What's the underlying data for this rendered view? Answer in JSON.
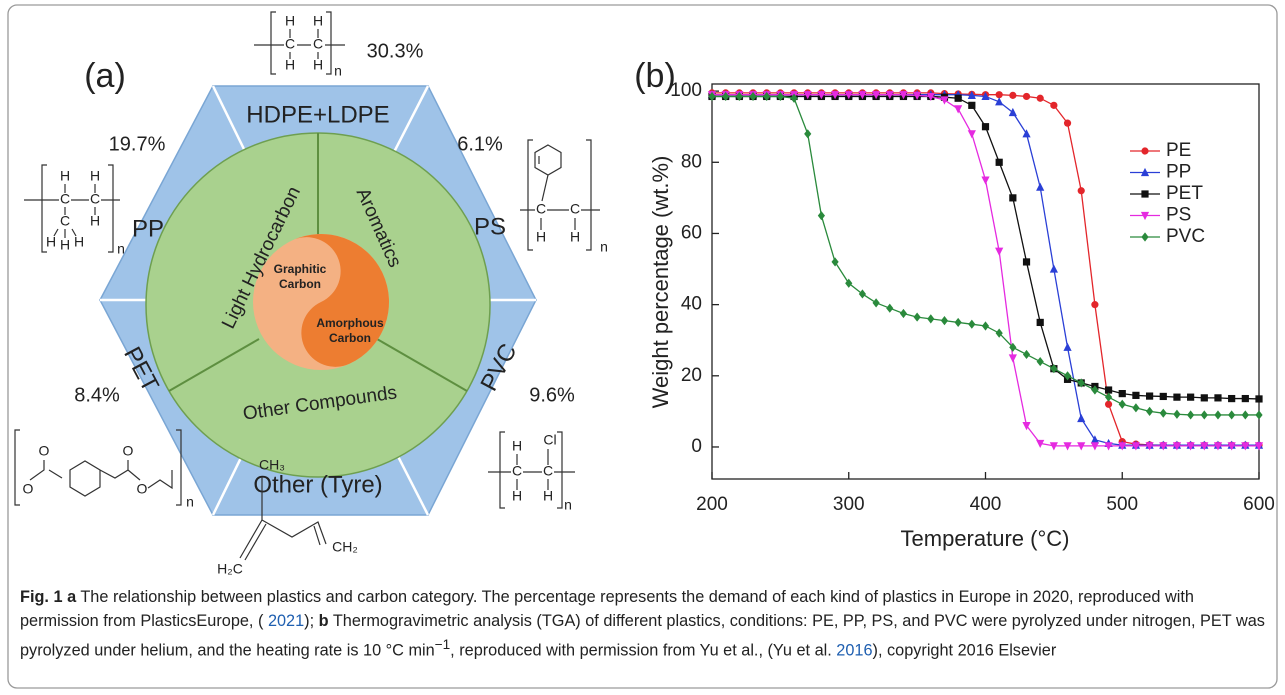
{
  "panel_a": {
    "label": "(a)",
    "segments": [
      {
        "name": "HDPE+LDPE",
        "percent": "30.3%"
      },
      {
        "name": "PS",
        "percent": "6.1%"
      },
      {
        "name": "PVC",
        "percent": "9.6%"
      },
      {
        "name": "Other (Tyre)"
      },
      {
        "name": "PET",
        "percent": "8.4%"
      },
      {
        "name": "PP",
        "percent": "19.7%"
      }
    ],
    "ring": [
      "Light Hydrocarbon",
      "Aromatics",
      "Other Compounds"
    ],
    "core": [
      [
        "Graphitic",
        "Carbon"
      ],
      [
        "Amorphous",
        "Carbon"
      ]
    ],
    "structures": {
      "pe": [
        "H",
        "H",
        "C",
        "C",
        "H",
        "H",
        "n"
      ],
      "pp": [
        "H",
        "H",
        "C",
        "C",
        "C",
        "H",
        "H",
        "H",
        "H",
        "n"
      ],
      "ps": [
        "C",
        "C",
        "H",
        "H",
        "n"
      ],
      "pet": [
        "O",
        "O",
        "O",
        "O",
        "n"
      ],
      "pvc": [
        "H",
        "Cl",
        "C",
        "C",
        "H",
        "H",
        "n"
      ],
      "tyre": [
        "CH₃",
        "H₂C",
        "CH₂"
      ]
    }
  },
  "chart_data": {
    "type": "line",
    "label": "(b)",
    "x_label": "Temperature (°C)",
    "y_label": "Weight percentage (wt.%)",
    "x": [
      200,
      210,
      220,
      230,
      240,
      250,
      260,
      270,
      280,
      290,
      300,
      310,
      320,
      330,
      340,
      350,
      360,
      370,
      380,
      390,
      400,
      410,
      420,
      430,
      440,
      450,
      460,
      470,
      480,
      490,
      500,
      510,
      520,
      530,
      540,
      550,
      560,
      570,
      580,
      590,
      600
    ],
    "series": [
      {
        "name": "PE",
        "color": "#e3262b",
        "marker": "circle",
        "values": [
          99.5,
          99.5,
          99.5,
          99.5,
          99.5,
          99.5,
          99.5,
          99.5,
          99.5,
          99.5,
          99.5,
          99.5,
          99.5,
          99.5,
          99.5,
          99.5,
          99.5,
          99.3,
          99.2,
          99.1,
          99,
          99,
          98.8,
          98.5,
          98,
          96,
          91,
          72,
          40,
          12,
          1.5,
          0.8,
          0.6,
          0.5,
          0.5,
          0.5,
          0.5,
          0.5,
          0.5,
          0.5,
          0.5
        ]
      },
      {
        "name": "PP",
        "color": "#2a3fd6",
        "marker": "triangle-up",
        "values": [
          99,
          99,
          99,
          99,
          99,
          99,
          99,
          99,
          99,
          99,
          99,
          99,
          99,
          99,
          99,
          99,
          99,
          99,
          99,
          98.8,
          98.5,
          97,
          94,
          88,
          73,
          50,
          28,
          8,
          2,
          1,
          0.5,
          0.5,
          0.5,
          0.5,
          0.5,
          0.5,
          0.5,
          0.5,
          0.5,
          0.5,
          0.5
        ]
      },
      {
        "name": "PET",
        "color": "#111111",
        "marker": "square",
        "values": [
          98.5,
          98.5,
          98.5,
          98.5,
          98.5,
          98.5,
          98.5,
          98.5,
          98.5,
          98.5,
          98.5,
          98.5,
          98.5,
          98.5,
          98.5,
          98.5,
          98.5,
          98.3,
          98,
          96,
          90,
          80,
          70,
          52,
          35,
          22,
          19,
          18,
          17,
          16,
          15,
          14.5,
          14.3,
          14.2,
          14,
          14,
          13.8,
          13.8,
          13.6,
          13.6,
          13.5
        ]
      },
      {
        "name": "PS",
        "color": "#e52ae0",
        "marker": "triangle-down",
        "values": [
          99,
          99,
          99,
          99,
          99,
          99,
          99,
          99,
          99,
          99,
          99,
          99,
          99,
          99,
          99,
          98.8,
          98.5,
          97.5,
          95,
          88,
          75,
          55,
          25,
          6,
          1,
          0.3,
          0.3,
          0.3,
          0.3,
          0.3,
          0.3,
          0.3,
          0.3,
          0.3,
          0.3,
          0.3,
          0.3,
          0.3,
          0.3,
          0.3,
          0.3
        ]
      },
      {
        "name": "PVC",
        "color": "#2a8a3c",
        "marker": "diamond",
        "values": [
          98.5,
          98.5,
          98.5,
          98.5,
          98.5,
          98.5,
          98,
          88,
          65,
          52,
          46,
          43,
          40.5,
          39,
          37.5,
          36.5,
          36,
          35.5,
          35,
          34.5,
          34,
          32,
          28,
          26,
          24,
          22,
          20,
          18,
          16,
          14,
          12,
          11,
          10,
          9.5,
          9.2,
          9,
          9,
          9,
          9,
          9,
          9
        ]
      }
    ],
    "xlim": [
      200,
      600
    ],
    "ylim": [
      -9,
      102
    ],
    "xticks": [
      200,
      300,
      400,
      500,
      600
    ],
    "yticks": [
      0,
      20,
      40,
      60,
      80,
      100
    ],
    "grid": false,
    "legend": "upper right"
  },
  "caption": {
    "label": "Fig. 1",
    "a": "a",
    "text_a": "The relationship between plastics and carbon category. The percentage represents the demand of each kind of plastics in Europe in 2020, reproduced with permission from PlasticsEurope, (",
    "ref_a": "2021",
    "text_a2": ");",
    "b": "b",
    "text_b": "Thermogravimetric analysis (TGA) of different plastics, conditions: PE, PP, PS, and PVC were pyrolyzed under nitrogen, PET was pyrolyzed under helium, and the heating rate is 10 °C min",
    "sup_b": "−1",
    "text_b2": ", reproduced with permission from Yu et al., (Yu et al.",
    "ref_b": "2016",
    "text_b3": "), copyright 2016 Elsevier"
  }
}
